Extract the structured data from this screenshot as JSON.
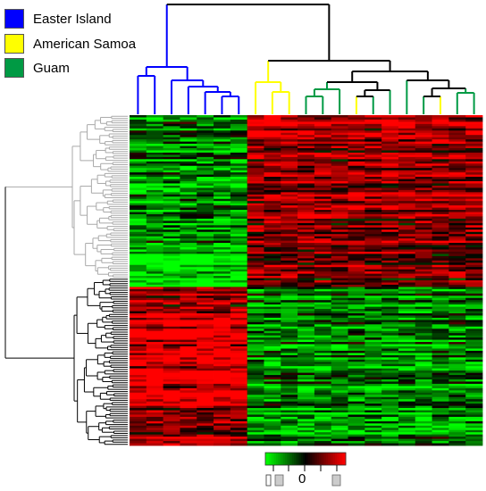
{
  "legend": {
    "items": [
      {
        "label": "Easter Island",
        "color": "#0000ff"
      },
      {
        "label": "American Samoa",
        "color": "#ffff00"
      },
      {
        "label": "Guam",
        "color": "#009a44"
      }
    ]
  },
  "chart_data": {
    "type": "heatmap",
    "title": "",
    "xlabel": "",
    "ylabel": "",
    "rows": 150,
    "columns": 21,
    "column_groups": [
      "Easter Island",
      "Easter Island",
      "Easter Island",
      "Easter Island",
      "Easter Island",
      "Easter Island",
      "Easter Island",
      "American Samoa",
      "American Samoa",
      "American Samoa",
      "Guam",
      "Guam",
      "Guam",
      "American Samoa",
      "Guam",
      "Guam",
      "Guam",
      "Guam",
      "American Samoa",
      "Guam",
      "Guam"
    ],
    "color_scale": {
      "low": "#00ff00",
      "mid": "#000000",
      "high": "#ff0000",
      "center_label": "0"
    },
    "row_clusters": [
      {
        "name": "upper",
        "rows": 74,
        "color": "#a9a9a9",
        "pattern_by_group": {
          "Easter Island": "low",
          "American Samoa": "high",
          "Guam": "high"
        }
      },
      {
        "name": "lower",
        "rows": 76,
        "color": "#000000",
        "pattern_by_group": {
          "Easter Island": "high",
          "American Samoa": "low",
          "Guam": "low"
        }
      }
    ],
    "dendrogram": {
      "column_tree": true,
      "row_tree": true
    }
  }
}
